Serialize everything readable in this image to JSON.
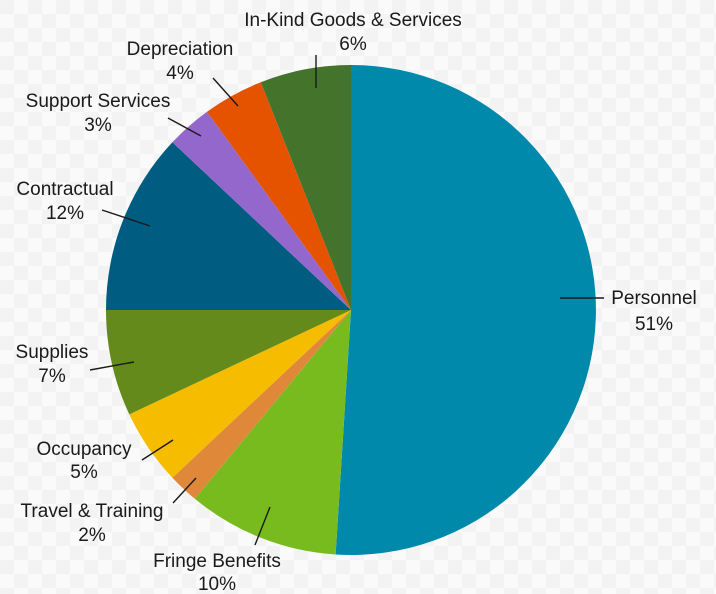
{
  "chart_data": {
    "type": "pie",
    "title": "",
    "slices": [
      {
        "label": "Personnel",
        "value": 51,
        "display": "51%",
        "color": "#0089ab"
      },
      {
        "label": "Fringe Benefits",
        "value": 10,
        "display": "10%",
        "color": "#78bb1f"
      },
      {
        "label": "Travel & Training",
        "value": 2,
        "display": "2%",
        "color": "#e0883a"
      },
      {
        "label": "Occupancy",
        "value": 5,
        "display": "5%",
        "color": "#f5bc00"
      },
      {
        "label": "Supplies",
        "value": 7,
        "display": "7%",
        "color": "#638a1b"
      },
      {
        "label": "Contractual",
        "value": 12,
        "display": "12%",
        "color": "#005c80"
      },
      {
        "label": "Support Services",
        "value": 3,
        "display": "3%",
        "color": "#9367cc"
      },
      {
        "label": "Depreciation",
        "value": 4,
        "display": "4%",
        "color": "#e55300"
      },
      {
        "label": "In-Kind Goods & Services",
        "value": 6,
        "display": "6%",
        "color": "#44732c"
      }
    ],
    "legend": "none (labels on leader lines)"
  }
}
